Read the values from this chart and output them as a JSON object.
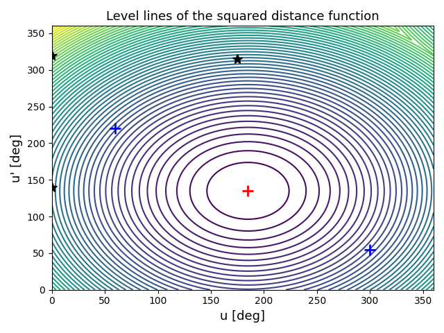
{
  "title": "Level lines of the squared distance function",
  "xlabel": "u [deg]",
  "ylabel": "u' [deg]",
  "xlim": [
    0,
    360
  ],
  "ylim": [
    0,
    360
  ],
  "xticks": [
    0,
    50,
    100,
    150,
    200,
    250,
    300,
    350
  ],
  "yticks": [
    0,
    50,
    100,
    150,
    200,
    250,
    300,
    350
  ],
  "colormap": "viridis",
  "n_contours": 60,
  "red_plus": [
    185,
    135
  ],
  "blue_plus_1": [
    60,
    220
  ],
  "blue_plus_2": [
    300,
    55
  ],
  "black_star_1": [
    0,
    320
  ],
  "black_star_2": [
    175,
    315
  ],
  "black_star_3": [
    0,
    140
  ],
  "ref_u": 185,
  "ref_v": 135
}
